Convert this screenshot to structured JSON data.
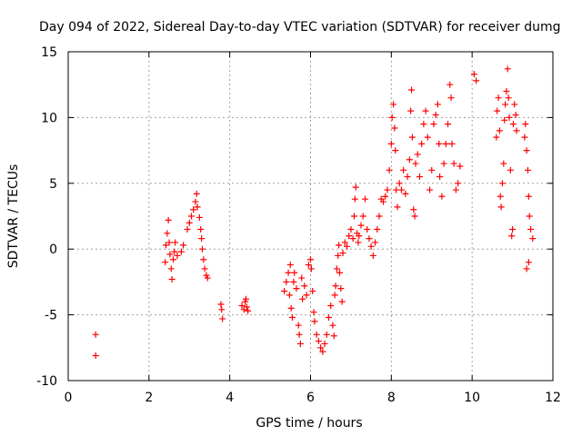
{
  "chart_data": {
    "type": "scatter",
    "title": "Day 094 of 2022, Sidereal Day-to-day VTEC variation (SDTVAR) for receiver dumg",
    "xlabel": "GPS time / hours",
    "ylabel": "SDTVAR / TECUs",
    "xlim": [
      0,
      12
    ],
    "ylim": [
      -10,
      15
    ],
    "xticks": [
      0,
      2,
      4,
      6,
      8,
      10,
      12
    ],
    "yticks": [
      -10,
      -5,
      0,
      5,
      10,
      15
    ],
    "grid": true,
    "marker": "+",
    "series": [
      {
        "name": "SDTVAR",
        "color": "#ff0000",
        "points": [
          [
            0.68,
            -6.5
          ],
          [
            0.68,
            -8.1
          ],
          [
            2.4,
            -1.0
          ],
          [
            2.42,
            0.3
          ],
          [
            2.45,
            1.2
          ],
          [
            2.48,
            2.2
          ],
          [
            2.5,
            0.5
          ],
          [
            2.52,
            -0.4
          ],
          [
            2.55,
            -1.5
          ],
          [
            2.57,
            -2.3
          ],
          [
            2.6,
            -0.8
          ],
          [
            2.63,
            -0.2
          ],
          [
            2.65,
            0.5
          ],
          [
            2.7,
            -0.5
          ],
          [
            2.8,
            -0.2
          ],
          [
            2.85,
            0.3
          ],
          [
            2.95,
            1.5
          ],
          [
            3.0,
            2.0
          ],
          [
            3.05,
            2.5
          ],
          [
            3.1,
            3.0
          ],
          [
            3.15,
            3.6
          ],
          [
            3.18,
            4.2
          ],
          [
            3.2,
            3.2
          ],
          [
            3.25,
            2.4
          ],
          [
            3.28,
            1.5
          ],
          [
            3.3,
            0.8
          ],
          [
            3.32,
            0.0
          ],
          [
            3.35,
            -0.8
          ],
          [
            3.38,
            -1.5
          ],
          [
            3.42,
            -2.0
          ],
          [
            3.45,
            -2.2
          ],
          [
            3.78,
            -4.2
          ],
          [
            3.8,
            -4.6
          ],
          [
            3.82,
            -5.3
          ],
          [
            4.3,
            -4.3
          ],
          [
            4.35,
            -4.6
          ],
          [
            4.38,
            -4.0
          ],
          [
            4.4,
            -3.8
          ],
          [
            4.42,
            -4.4
          ],
          [
            4.45,
            -4.7
          ],
          [
            5.35,
            -3.2
          ],
          [
            5.4,
            -2.5
          ],
          [
            5.45,
            -1.8
          ],
          [
            5.48,
            -3.5
          ],
          [
            5.5,
            -1.2
          ],
          [
            5.52,
            -4.5
          ],
          [
            5.55,
            -5.2
          ],
          [
            5.58,
            -2.5
          ],
          [
            5.6,
            -1.8
          ],
          [
            5.65,
            -3.0
          ],
          [
            5.7,
            -5.8
          ],
          [
            5.72,
            -6.5
          ],
          [
            5.75,
            -7.2
          ],
          [
            5.78,
            -2.2
          ],
          [
            5.8,
            -3.8
          ],
          [
            5.85,
            -2.8
          ],
          [
            5.9,
            -3.5
          ],
          [
            5.95,
            -1.2
          ],
          [
            6.0,
            -0.8
          ],
          [
            6.02,
            -1.5
          ],
          [
            6.05,
            -3.2
          ],
          [
            6.08,
            -4.8
          ],
          [
            6.1,
            -5.5
          ],
          [
            6.15,
            -6.5
          ],
          [
            6.2,
            -7.0
          ],
          [
            6.25,
            -7.5
          ],
          [
            6.3,
            -7.8
          ],
          [
            6.35,
            -7.2
          ],
          [
            6.4,
            -6.5
          ],
          [
            6.45,
            -5.2
          ],
          [
            6.5,
            -4.3
          ],
          [
            6.55,
            -5.8
          ],
          [
            6.58,
            -6.6
          ],
          [
            6.6,
            -3.5
          ],
          [
            6.62,
            -2.8
          ],
          [
            6.65,
            -1.5
          ],
          [
            6.68,
            -0.5
          ],
          [
            6.7,
            0.3
          ],
          [
            6.72,
            -1.8
          ],
          [
            6.75,
            -3.0
          ],
          [
            6.78,
            -4.0
          ],
          [
            6.8,
            -0.3
          ],
          [
            6.85,
            0.5
          ],
          [
            6.9,
            0.2
          ],
          [
            6.95,
            1.0
          ],
          [
            7.0,
            1.5
          ],
          [
            7.05,
            0.8
          ],
          [
            7.08,
            2.5
          ],
          [
            7.1,
            3.8
          ],
          [
            7.12,
            4.7
          ],
          [
            7.15,
            1.2
          ],
          [
            7.18,
            0.5
          ],
          [
            7.2,
            1.0
          ],
          [
            7.25,
            1.8
          ],
          [
            7.3,
            2.5
          ],
          [
            7.35,
            3.8
          ],
          [
            7.4,
            1.5
          ],
          [
            7.45,
            0.8
          ],
          [
            7.5,
            0.2
          ],
          [
            7.55,
            -0.5
          ],
          [
            7.6,
            0.5
          ],
          [
            7.65,
            1.5
          ],
          [
            7.7,
            2.5
          ],
          [
            7.75,
            3.8
          ],
          [
            7.8,
            3.6
          ],
          [
            7.85,
            4.0
          ],
          [
            7.9,
            4.5
          ],
          [
            7.95,
            6.0
          ],
          [
            8.0,
            8.0
          ],
          [
            8.02,
            10.0
          ],
          [
            8.05,
            11.0
          ],
          [
            8.08,
            9.2
          ],
          [
            8.1,
            7.5
          ],
          [
            8.12,
            4.5
          ],
          [
            8.15,
            3.2
          ],
          [
            8.2,
            5.0
          ],
          [
            8.25,
            4.5
          ],
          [
            8.3,
            6.0
          ],
          [
            8.35,
            4.2
          ],
          [
            8.4,
            5.5
          ],
          [
            8.45,
            6.8
          ],
          [
            8.48,
            10.5
          ],
          [
            8.5,
            12.1
          ],
          [
            8.52,
            8.5
          ],
          [
            8.55,
            3.0
          ],
          [
            8.58,
            2.5
          ],
          [
            8.6,
            6.5
          ],
          [
            8.65,
            7.2
          ],
          [
            8.7,
            5.5
          ],
          [
            8.75,
            8.0
          ],
          [
            8.8,
            9.5
          ],
          [
            8.85,
            10.5
          ],
          [
            8.9,
            8.5
          ],
          [
            8.95,
            4.5
          ],
          [
            9.0,
            6.0
          ],
          [
            9.05,
            9.5
          ],
          [
            9.1,
            10.2
          ],
          [
            9.15,
            11.0
          ],
          [
            9.18,
            8.0
          ],
          [
            9.2,
            5.5
          ],
          [
            9.25,
            4.0
          ],
          [
            9.3,
            6.5
          ],
          [
            9.35,
            8.0
          ],
          [
            9.4,
            9.5
          ],
          [
            9.45,
            12.5
          ],
          [
            9.48,
            11.5
          ],
          [
            9.5,
            8.0
          ],
          [
            9.55,
            6.5
          ],
          [
            9.6,
            4.5
          ],
          [
            9.65,
            5.0
          ],
          [
            9.7,
            6.3
          ],
          [
            10.05,
            13.3
          ],
          [
            10.1,
            12.8
          ],
          [
            10.6,
            8.5
          ],
          [
            10.62,
            10.5
          ],
          [
            10.65,
            11.5
          ],
          [
            10.68,
            9.0
          ],
          [
            10.7,
            4.0
          ],
          [
            10.72,
            3.2
          ],
          [
            10.75,
            5.0
          ],
          [
            10.78,
            6.5
          ],
          [
            10.8,
            9.8
          ],
          [
            10.82,
            11.0
          ],
          [
            10.85,
            12.0
          ],
          [
            10.88,
            13.7
          ],
          [
            10.9,
            11.5
          ],
          [
            10.92,
            10.0
          ],
          [
            10.95,
            6.0
          ],
          [
            10.98,
            1.0
          ],
          [
            11.0,
            1.5
          ],
          [
            11.02,
            9.5
          ],
          [
            11.05,
            11.0
          ],
          [
            11.08,
            10.2
          ],
          [
            11.1,
            9.0
          ],
          [
            11.3,
            8.5
          ],
          [
            11.32,
            9.5
          ],
          [
            11.35,
            7.5
          ],
          [
            11.38,
            6.0
          ],
          [
            11.4,
            4.0
          ],
          [
            11.42,
            2.5
          ],
          [
            11.35,
            -1.5
          ],
          [
            11.4,
            -1.0
          ],
          [
            11.45,
            1.5
          ],
          [
            11.5,
            0.8
          ]
        ]
      }
    ]
  }
}
